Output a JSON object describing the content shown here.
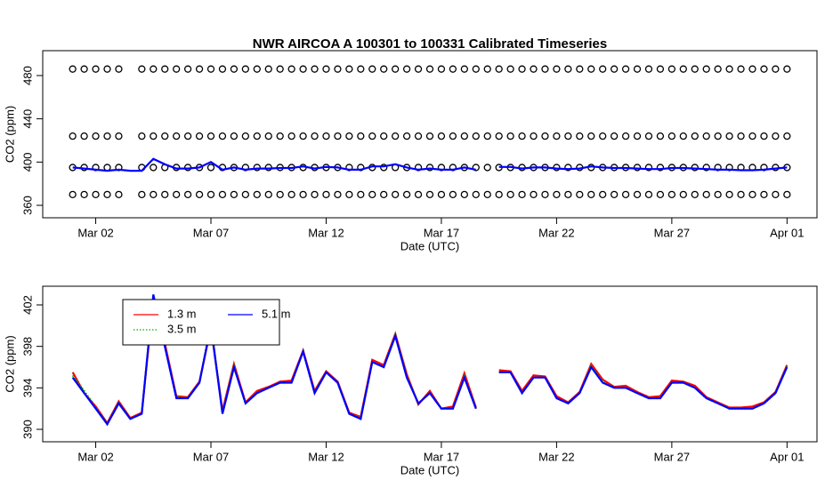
{
  "chart_data": [
    {
      "type": "line",
      "title": "NWR   AIRCOA  A   100301  to  100331   Calibrated Timeseries",
      "x_label": "Date (UTC)",
      "y_label": "CO2 (ppm)",
      "xlim": [
        -1.3,
        32.3
      ],
      "ylim": [
        348.5,
        503
      ],
      "xticks": [
        {
          "value": 1,
          "label": "Mar 02"
        },
        {
          "value": 6,
          "label": "Mar 07"
        },
        {
          "value": 11,
          "label": "Mar 12"
        },
        {
          "value": 16,
          "label": "Mar 17"
        },
        {
          "value": 21,
          "label": "Mar 22"
        },
        {
          "value": 26,
          "label": "Mar 27"
        },
        {
          "value": 31,
          "label": "Apr 01"
        }
      ],
      "yticks": [
        360,
        400,
        440,
        480
      ],
      "x": [
        0,
        0.5,
        1,
        1.5,
        2,
        2.5,
        3,
        3.5,
        4,
        4.5,
        5,
        5.5,
        6,
        6.5,
        7,
        7.5,
        8,
        8.5,
        9,
        9.5,
        10,
        10.5,
        11,
        11.5,
        12,
        12.5,
        13,
        13.5,
        14,
        14.5,
        15,
        15.5,
        16,
        16.5,
        17,
        17.5,
        18,
        18.5,
        19,
        19.5,
        20,
        20.5,
        21,
        21.5,
        22,
        22.5,
        23,
        23.5,
        24,
        24.5,
        25,
        25.5,
        26,
        26.5,
        27,
        27.5,
        28,
        28.5,
        29,
        29.5,
        30,
        30.5,
        31
      ],
      "series": [
        {
          "color": "#000000",
          "style": "points",
          "values": [
            486,
            486,
            486,
            486,
            486,
            null,
            486,
            486,
            486,
            486,
            486,
            486,
            486,
            486,
            486,
            486,
            486,
            486,
            486,
            486,
            486,
            486,
            486,
            486,
            486,
            486,
            486,
            486,
            486,
            486,
            486,
            486,
            486,
            486,
            486,
            486,
            486,
            486,
            486,
            486,
            486,
            486,
            486,
            486,
            486,
            486,
            486,
            486,
            486,
            486,
            486,
            486,
            486,
            486,
            486,
            486,
            486,
            486,
            486,
            486,
            486,
            486,
            486
          ]
        },
        {
          "color": "#000000",
          "style": "points",
          "values": [
            424,
            424,
            424,
            424,
            424,
            null,
            424,
            424,
            424,
            424,
            424,
            424,
            424,
            424,
            424,
            424,
            424,
            424,
            424,
            424,
            424,
            424,
            424,
            424,
            424,
            424,
            424,
            424,
            424,
            424,
            424,
            424,
            424,
            424,
            424,
            424,
            424,
            424,
            424,
            424,
            424,
            424,
            424,
            424,
            424,
            424,
            424,
            424,
            424,
            424,
            424,
            424,
            424,
            424,
            424,
            424,
            424,
            424,
            424,
            424,
            424,
            424,
            424
          ]
        },
        {
          "color": "#000000",
          "style": "points",
          "values": [
            395,
            395,
            395,
            395,
            395,
            null,
            395,
            395,
            395,
            395,
            395,
            395,
            395,
            395,
            395,
            395,
            395,
            395,
            395,
            395,
            395,
            395,
            395,
            395,
            395,
            395,
            395,
            395,
            395,
            395,
            395,
            395,
            395,
            395,
            395,
            395,
            395,
            395,
            395,
            395,
            395,
            395,
            395,
            395,
            395,
            395,
            395,
            395,
            395,
            395,
            395,
            395,
            395,
            395,
            395,
            395,
            395,
            395,
            395,
            395,
            395,
            395,
            395
          ]
        },
        {
          "color": "#000000",
          "style": "points",
          "values": [
            370,
            370,
            370,
            370,
            370,
            null,
            370,
            370,
            370,
            370,
            370,
            370,
            370,
            370,
            370,
            370,
            370,
            370,
            370,
            370,
            370,
            370,
            370,
            370,
            370,
            370,
            370,
            370,
            370,
            370,
            370,
            370,
            370,
            370,
            370,
            370,
            370,
            370,
            370,
            370,
            370,
            370,
            370,
            370,
            370,
            370,
            370,
            370,
            370,
            370,
            370,
            370,
            370,
            370,
            370,
            370,
            370,
            370,
            370,
            370,
            370,
            370,
            370
          ]
        },
        {
          "color": "#0000ff",
          "style": "line",
          "values": [
            395,
            394,
            393,
            392,
            393,
            392,
            392,
            403,
            398,
            394,
            394,
            395,
            400,
            393,
            395,
            393,
            394,
            394,
            394.5,
            394.5,
            396,
            394,
            395.5,
            395,
            393,
            393,
            396,
            396,
            398,
            395,
            393,
            394,
            393,
            393,
            395,
            393,
            null,
            395.5,
            395.5,
            394,
            395,
            395,
            394,
            393.5,
            394,
            396,
            395,
            394.5,
            394.5,
            394,
            393.5,
            393.5,
            394.5,
            394.5,
            394,
            393.5,
            393,
            393,
            392.5,
            392.5,
            393,
            394,
            395
          ]
        }
      ]
    },
    {
      "type": "line",
      "x_label": "Date (UTC)",
      "y_label": "CO2 (ppm)",
      "xlim": [
        -1.3,
        32.3
      ],
      "ylim": [
        388.8,
        403.8
      ],
      "xticks": [
        {
          "value": 1,
          "label": "Mar 02"
        },
        {
          "value": 6,
          "label": "Mar 07"
        },
        {
          "value": 11,
          "label": "Mar 12"
        },
        {
          "value": 16,
          "label": "Mar 17"
        },
        {
          "value": 21,
          "label": "Mar 22"
        },
        {
          "value": 26,
          "label": "Mar 27"
        },
        {
          "value": 31,
          "label": "Apr 01"
        }
      ],
      "yticks": [
        390,
        394,
        398,
        402
      ],
      "legend": "top-left",
      "x": [
        0,
        0.5,
        1,
        1.5,
        2,
        2.5,
        3,
        3.5,
        4,
        4.5,
        5,
        5.5,
        6,
        6.5,
        7,
        7.5,
        8,
        8.5,
        9,
        9.5,
        10,
        10.5,
        11,
        11.5,
        12,
        12.5,
        13,
        13.5,
        14,
        14.5,
        15,
        15.5,
        16,
        16.5,
        17,
        17.5,
        18,
        18.5,
        19,
        19.5,
        20,
        20.5,
        21,
        21.5,
        22,
        22.5,
        23,
        23.5,
        24,
        24.5,
        25,
        25.5,
        26,
        26.5,
        27,
        27.5,
        28,
        28.5,
        29,
        29.5,
        30,
        30.5,
        31
      ],
      "series": [
        {
          "name": "1.3 m",
          "color": "#ff0000",
          "style": "line",
          "linestyle": "solid",
          "values": [
            395.5,
            393.5,
            392.2,
            390.6,
            392.7,
            391.1,
            391.6,
            402.5,
            398.3,
            393.2,
            393.1,
            394.6,
            399.8,
            391.8,
            396.3,
            392.6,
            393.7,
            394.1,
            394.6,
            394.7,
            397.6,
            393.7,
            395.6,
            394.6,
            391.6,
            391.2,
            396.7,
            396.2,
            399.2,
            395.3,
            392.4,
            393.7,
            392,
            392.2,
            395.4,
            392.1,
            null,
            395.7,
            395.6,
            393.7,
            395.2,
            395.1,
            393.2,
            392.6,
            393.6,
            396.3,
            394.8,
            394.1,
            394.2,
            393.6,
            393.1,
            393.2,
            394.7,
            394.6,
            394.2,
            393.1,
            392.6,
            392.1,
            392.1,
            392.2,
            392.6,
            393.6,
            396.2
          ]
        },
        {
          "name": "3.5 m",
          "color": "#00b000",
          "style": "line",
          "linestyle": "dotted",
          "values": [
            395.2,
            393.7,
            392.1,
            390.5,
            392.6,
            391,
            391.5,
            402.8,
            398.1,
            393.1,
            393,
            394.5,
            400.2,
            391.6,
            396.1,
            392.5,
            393.5,
            394,
            394.5,
            394.5,
            397.5,
            393.6,
            395.5,
            394.5,
            391.5,
            391.1,
            396.5,
            396,
            399.1,
            395.1,
            392.5,
            393.5,
            392,
            392,
            395.1,
            392,
            null,
            395.5,
            395.5,
            393.5,
            395,
            395,
            393,
            392.5,
            393.5,
            396.1,
            394.6,
            394,
            394,
            393.5,
            393,
            393,
            394.5,
            394.5,
            394,
            393,
            392.5,
            392,
            392,
            392,
            392.5,
            393.5,
            396.1
          ]
        },
        {
          "name": "5.1 m",
          "color": "#0000ff",
          "style": "line",
          "linestyle": "solid",
          "values": [
            395,
            393.5,
            392,
            390.5,
            392.5,
            391,
            391.5,
            403,
            398,
            393,
            393,
            394.5,
            400,
            391.5,
            396,
            392.5,
            393.5,
            394,
            394.5,
            394.5,
            397.5,
            393.5,
            395.5,
            394.5,
            391.5,
            391,
            396.5,
            396,
            399,
            395,
            392.5,
            393.5,
            392,
            392,
            395,
            392,
            null,
            395.5,
            395.5,
            393.5,
            395,
            395,
            393,
            392.5,
            393.5,
            396,
            394.5,
            394,
            394,
            393.5,
            393,
            393,
            394.5,
            394.5,
            394,
            393,
            392.5,
            392,
            392,
            392,
            392.5,
            393.5,
            396
          ]
        }
      ]
    }
  ]
}
